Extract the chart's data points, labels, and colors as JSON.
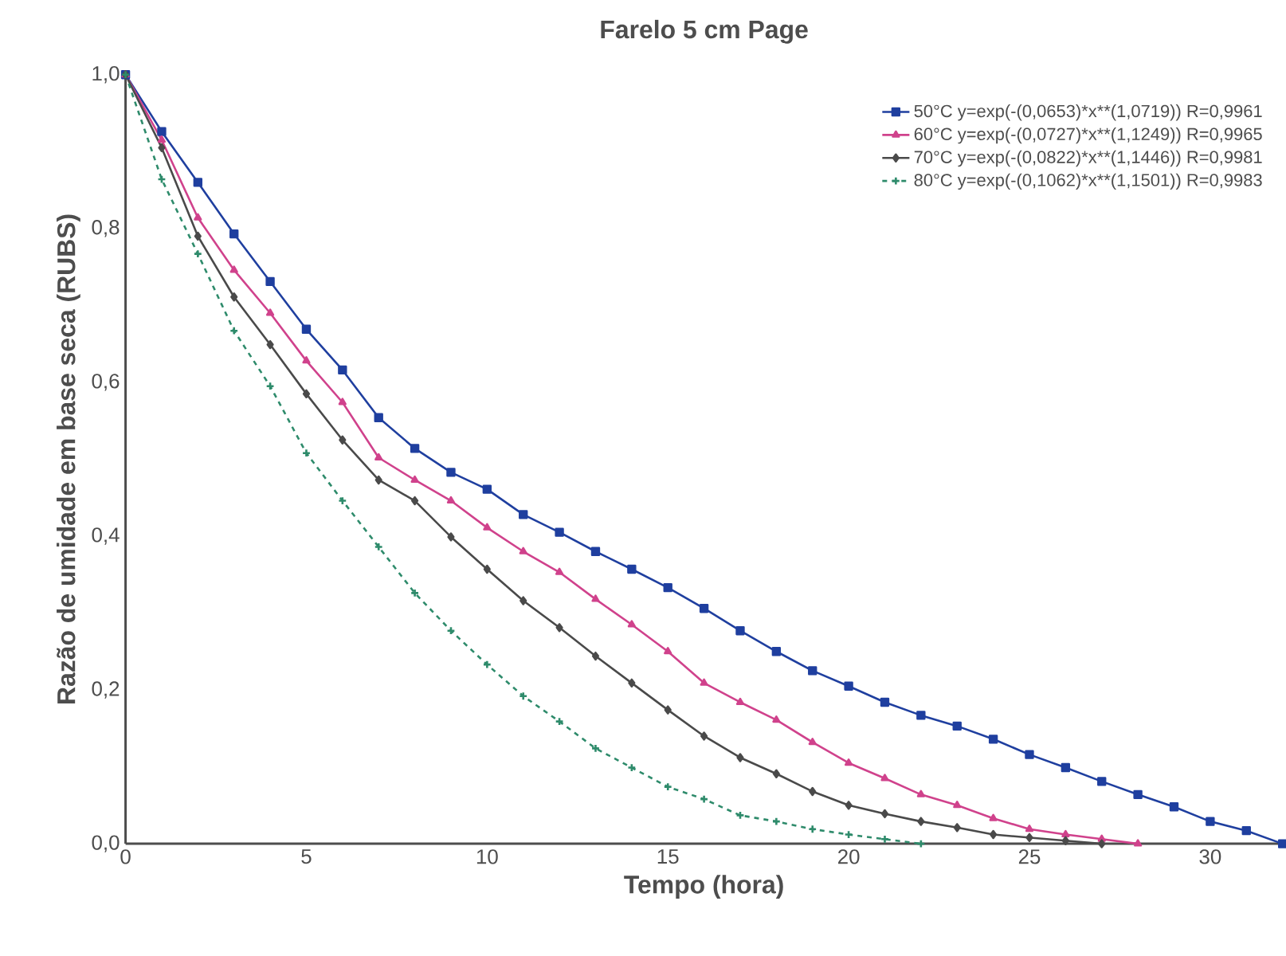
{
  "chart_data": {
    "type": "line",
    "title": "Farelo 5 cm Page",
    "xlabel": "Tempo (hora)",
    "ylabel": "Razão de umidade em base seca (RUBS)",
    "xlim": [
      0,
      32
    ],
    "ylim": [
      0,
      1
    ],
    "xticks": [
      0,
      5,
      10,
      15,
      20,
      25,
      30
    ],
    "yticks": [
      {
        "value": 0,
        "label": "0,0"
      },
      {
        "value": 0.2,
        "label": "0,2"
      },
      {
        "value": 0.4,
        "label": "0,4"
      },
      {
        "value": 0.6,
        "label": "0,6"
      },
      {
        "value": 0.8,
        "label": "0,8"
      },
      {
        "value": 1,
        "label": "1,0"
      }
    ],
    "grid": false,
    "legend": "top right",
    "series": [
      {
        "name": "50°C  y=exp(-(0,0653)*x**(1,0719))  R=0,9961",
        "color": "#1f3f9f",
        "marker": "square",
        "line_style": "solid",
        "x": [
          0,
          1,
          2,
          3,
          4,
          5,
          6,
          7,
          8,
          9,
          10,
          11,
          12,
          13,
          14,
          15,
          16,
          17,
          18,
          19,
          20,
          21,
          22,
          23,
          24,
          25,
          26,
          27,
          28,
          29,
          30,
          31,
          32
        ],
        "values": [
          1.0,
          0.926,
          0.86,
          0.793,
          0.731,
          0.669,
          0.616,
          0.554,
          0.514,
          0.483,
          0.461,
          0.428,
          0.405,
          0.38,
          0.357,
          0.333,
          0.306,
          0.277,
          0.25,
          0.225,
          0.205,
          0.184,
          0.167,
          0.153,
          0.136,
          0.116,
          0.099,
          0.081,
          0.064,
          0.048,
          0.029,
          0.017,
          0.0
        ]
      },
      {
        "name": "60°C  y=exp(-(0,0727)*x**(1,1249))  R=0,9965",
        "color": "#d0428c",
        "marker": "triangle",
        "line_style": "solid",
        "x": [
          0,
          1,
          2,
          3,
          4,
          5,
          6,
          7,
          8,
          9,
          10,
          11,
          12,
          13,
          14,
          15,
          16,
          17,
          18,
          19,
          20,
          21,
          22,
          23,
          24,
          25,
          26,
          27,
          28
        ],
        "values": [
          1.0,
          0.915,
          0.814,
          0.746,
          0.69,
          0.628,
          0.574,
          0.502,
          0.473,
          0.446,
          0.411,
          0.38,
          0.353,
          0.318,
          0.285,
          0.25,
          0.209,
          0.184,
          0.161,
          0.132,
          0.105,
          0.085,
          0.064,
          0.05,
          0.033,
          0.019,
          0.012,
          0.006,
          0.0
        ]
      },
      {
        "name": "70°C  y=exp(-(0,0822)*x**(1,1446))  R=0,9981",
        "color": "#4a4a4a",
        "marker": "diamond",
        "line_style": "solid",
        "x": [
          0,
          1,
          2,
          3,
          4,
          5,
          6,
          7,
          8,
          9,
          10,
          11,
          12,
          13,
          14,
          15,
          16,
          17,
          18,
          19,
          20,
          21,
          22,
          23,
          24,
          25,
          26,
          27
        ],
        "values": [
          1.0,
          0.905,
          0.79,
          0.711,
          0.649,
          0.585,
          0.525,
          0.473,
          0.446,
          0.399,
          0.357,
          0.316,
          0.281,
          0.244,
          0.209,
          0.174,
          0.14,
          0.112,
          0.091,
          0.068,
          0.05,
          0.039,
          0.029,
          0.021,
          0.012,
          0.008,
          0.004,
          0.0
        ]
      },
      {
        "name": "80°C  y=exp(-(0,1062)*x**(1,1501))  R=0,9983",
        "color": "#2e8b6b",
        "marker": "cross",
        "line_style": "dashed",
        "x": [
          0,
          1,
          2,
          3,
          4,
          5,
          6,
          7,
          8,
          9,
          10,
          11,
          12,
          13,
          14,
          15,
          16,
          17,
          18,
          19,
          20,
          21,
          22
        ],
        "values": [
          1.0,
          0.864,
          0.767,
          0.667,
          0.595,
          0.508,
          0.446,
          0.386,
          0.326,
          0.277,
          0.233,
          0.192,
          0.159,
          0.124,
          0.099,
          0.074,
          0.058,
          0.037,
          0.029,
          0.019,
          0.012,
          0.006,
          0.0
        ]
      }
    ]
  }
}
